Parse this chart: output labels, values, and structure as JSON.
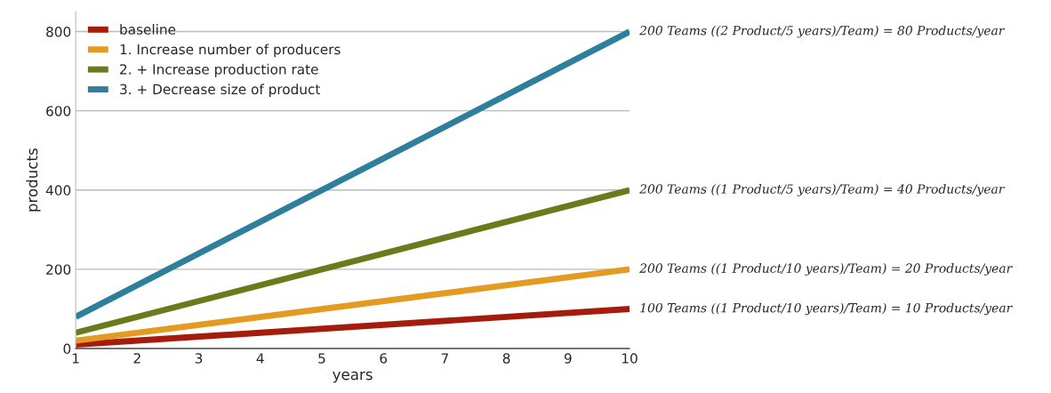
{
  "chart_data": {
    "type": "line",
    "xlabel": "years",
    "ylabel": "products",
    "x": [
      1,
      10
    ],
    "series": [
      {
        "name": "baseline",
        "color": "#a51c0c",
        "values": [
          10,
          100
        ]
      },
      {
        "name": "1. Increase number of producers",
        "color": "#e39b22",
        "values": [
          20,
          200
        ]
      },
      {
        "name": "2. + Increase production rate",
        "color": "#6b7b1c",
        "values": [
          40,
          400
        ]
      },
      {
        "name": "3. + Decrease size of product",
        "color": "#2e7f9c",
        "values": [
          80,
          800
        ]
      }
    ],
    "xlim": [
      1,
      10
    ],
    "xticks": [
      1,
      2,
      3,
      4,
      5,
      6,
      7,
      8,
      9,
      10
    ],
    "ylim": [
      0,
      850
    ],
    "yticks": [
      0,
      200,
      400,
      600,
      800
    ],
    "grid": "y",
    "legend": "top left",
    "marker": "none",
    "line_style": "solid",
    "annotations": [
      "200 Teams ((2 Product/5 years)/Team) = 80 Products/year",
      "200 Teams ((1 Product/5 years)/Team) = 40 Products/year",
      "200 Teams ((1 Product/10 years)/Team) = 20 Products/year",
      "100 Teams ((1 Product/10 years)/Team) = 10 Products/year"
    ]
  }
}
